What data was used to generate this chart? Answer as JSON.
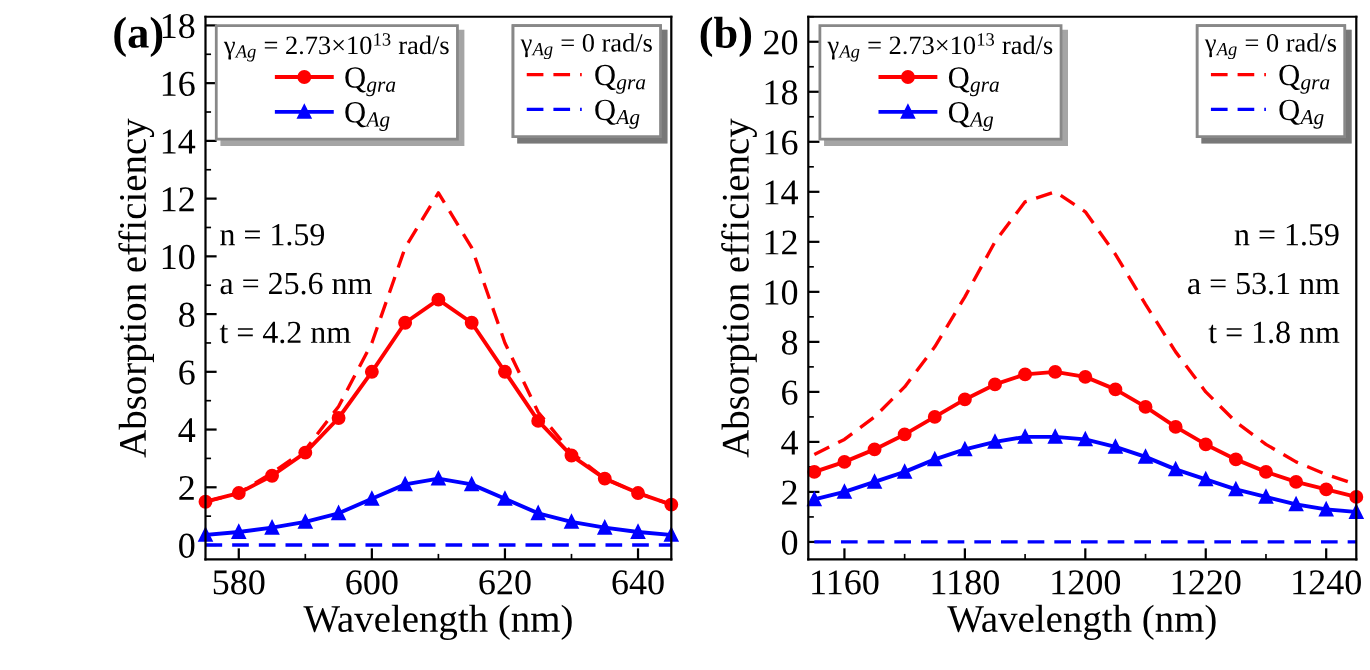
{
  "chart_data": [
    {
      "type": "line",
      "title": "(a)",
      "xlabel": "Wavelength (nm)",
      "ylabel": "Absorption efficiency",
      "xlim": [
        575,
        645
      ],
      "xticks": [
        580,
        600,
        620,
        640
      ],
      "ylim": [
        -0.5,
        18.3
      ],
      "yticks": [
        0,
        2,
        4,
        6,
        8,
        10,
        12,
        14,
        16,
        18
      ],
      "legend": "top",
      "legend_title": [
        "γ$_{Ag}$ = 2.73×10$^{13}$ rad/s",
        "γ$_{Ag}$ = 0 rad/s"
      ],
      "annotations": [
        "n = 1.59",
        "a = 25.6 nm",
        "t = 4.2 nm"
      ],
      "x": [
        575,
        580,
        585,
        590,
        595,
        600,
        605,
        610,
        615,
        620,
        625,
        630,
        635,
        640,
        645
      ],
      "series": [
        {
          "name": "Q$_{gra}$",
          "color": "#ff0000",
          "line_style": "solid",
          "marker": "circle",
          "values": [
            1.5,
            1.8,
            2.4,
            3.2,
            4.4,
            6.0,
            7.7,
            8.5,
            7.7,
            6.0,
            4.3,
            3.1,
            2.3,
            1.8,
            1.4
          ]
        },
        {
          "name": "Q$_{Ag}$",
          "color": "#0000ff",
          "line_style": "solid",
          "marker": "triangle",
          "values": [
            0.35,
            0.45,
            0.6,
            0.8,
            1.1,
            1.6,
            2.1,
            2.3,
            2.1,
            1.6,
            1.1,
            0.8,
            0.6,
            0.45,
            0.35
          ]
        },
        {
          "name": "Q$_{gra}$",
          "color": "#ff0000",
          "line_style": "dashed",
          "marker": "none",
          "values": [
            1.5,
            1.8,
            2.5,
            3.3,
            4.8,
            7.0,
            10.3,
            12.2,
            10.3,
            7.0,
            4.6,
            3.2,
            2.3,
            1.8,
            1.4
          ]
        },
        {
          "name": "Q$_{Ag}$",
          "color": "#0000ff",
          "line_style": "dashed",
          "marker": "none",
          "values": [
            0,
            0,
            0,
            0,
            0,
            0,
            0,
            0,
            0,
            0,
            0,
            0,
            0,
            0,
            0
          ]
        }
      ]
    },
    {
      "type": "line",
      "title": "(b)",
      "xlabel": "Wavelength (nm)",
      "ylabel": "Absorption efficiency",
      "xlim": [
        1154,
        1245
      ],
      "xticks": [
        1160,
        1180,
        1200,
        1220,
        1240
      ],
      "ylim": [
        -0.7,
        21
      ],
      "yticks": [
        0,
        2,
        4,
        6,
        8,
        10,
        12,
        14,
        16,
        18,
        20
      ],
      "legend": "top",
      "legend_title": [
        "γ$_{Ag}$ = 2.73×10$^{13}$ rad/s",
        "γ$_{Ag}$ = 0 rad/s"
      ],
      "annotations": [
        "n = 1.59",
        "a = 53.1 nm",
        "t = 1.8 nm"
      ],
      "x": [
        1155,
        1160,
        1165,
        1170,
        1175,
        1180,
        1185,
        1190,
        1195,
        1200,
        1205,
        1210,
        1215,
        1220,
        1225,
        1230,
        1235,
        1240,
        1245
      ],
      "series": [
        {
          "name": "Q$_{gra}$",
          "color": "#ff0000",
          "line_style": "solid",
          "marker": "circle",
          "values": [
            2.8,
            3.2,
            3.7,
            4.3,
            5.0,
            5.7,
            6.3,
            6.7,
            6.8,
            6.6,
            6.1,
            5.4,
            4.6,
            3.9,
            3.3,
            2.8,
            2.4,
            2.1,
            1.8
          ]
        },
        {
          "name": "Q$_{Ag}$",
          "color": "#0000ff",
          "line_style": "solid",
          "marker": "triangle",
          "values": [
            1.7,
            2.0,
            2.4,
            2.8,
            3.3,
            3.7,
            4.0,
            4.2,
            4.2,
            4.1,
            3.8,
            3.4,
            2.9,
            2.5,
            2.1,
            1.8,
            1.5,
            1.3,
            1.2
          ]
        },
        {
          "name": "Q$_{gra}$",
          "color": "#ff0000",
          "line_style": "dashed",
          "marker": "none",
          "values": [
            3.5,
            4.1,
            5.0,
            6.2,
            7.8,
            9.8,
            12.0,
            13.6,
            14.0,
            13.2,
            11.5,
            9.5,
            7.6,
            6.0,
            4.8,
            3.9,
            3.2,
            2.7,
            2.3
          ]
        },
        {
          "name": "Q$_{Ag}$",
          "color": "#0000ff",
          "line_style": "dashed",
          "marker": "none",
          "values": [
            0,
            0,
            0,
            0,
            0,
            0,
            0,
            0,
            0,
            0,
            0,
            0,
            0,
            0,
            0,
            0,
            0,
            0,
            0
          ]
        }
      ]
    }
  ]
}
